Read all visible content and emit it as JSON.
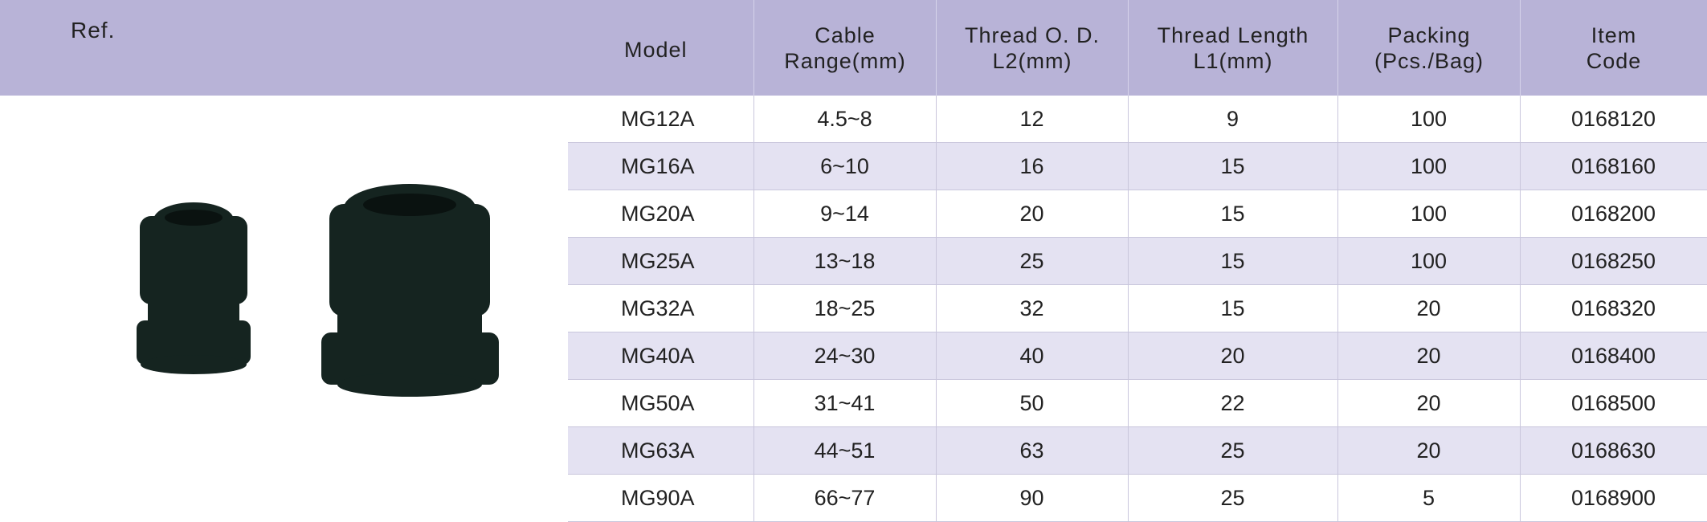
{
  "header": {
    "ref": "Ref."
  },
  "table": {
    "columns": [
      [
        "Model"
      ],
      [
        "Cable",
        "Range(mm)"
      ],
      [
        "Thread O. D.",
        "L2(mm)"
      ],
      [
        "Thread Length",
        "L1(mm)"
      ],
      [
        "Packing",
        "(Pcs./Bag)"
      ],
      [
        "Item",
        "Code"
      ]
    ],
    "rows": [
      [
        "MG12A",
        "4.5~8",
        "12",
        "9",
        "100",
        "0168120"
      ],
      [
        "MG16A",
        "6~10",
        "16",
        "15",
        "100",
        "0168160"
      ],
      [
        "MG20A",
        "9~14",
        "20",
        "15",
        "100",
        "0168200"
      ],
      [
        "MG25A",
        "13~18",
        "25",
        "15",
        "100",
        "0168250"
      ],
      [
        "MG32A",
        "18~25",
        "32",
        "15",
        "20",
        "0168320"
      ],
      [
        "MG40A",
        "24~30",
        "40",
        "20",
        "20",
        "0168400"
      ],
      [
        "MG50A",
        "31~41",
        "50",
        "22",
        "20",
        "0168500"
      ],
      [
        "MG63A",
        "44~51",
        "63",
        "25",
        "20",
        "0168630"
      ],
      [
        "MG90A",
        "66~77",
        "90",
        "25",
        "5",
        "0168900"
      ]
    ]
  }
}
